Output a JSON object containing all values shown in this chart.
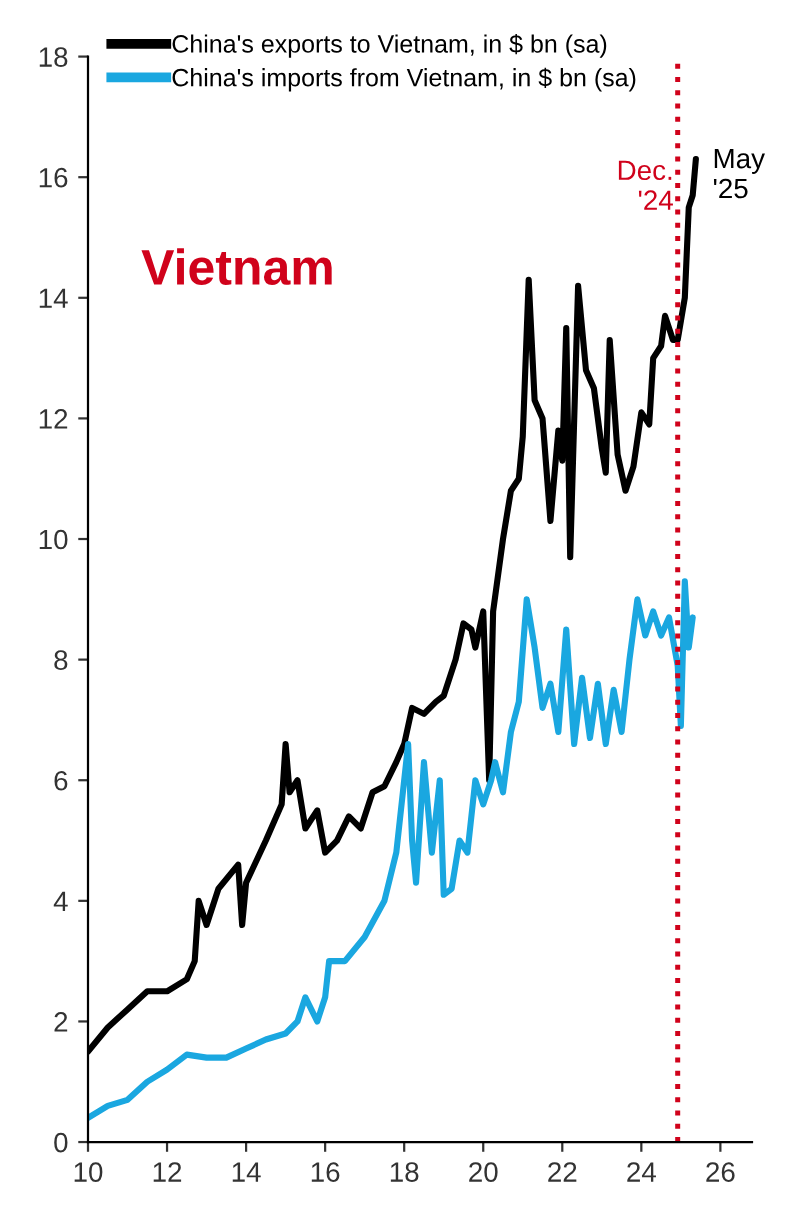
{
  "chart_data": {
    "type": "line",
    "series": [
      {
        "name": "China's exports to Vietnam, in $ bn (sa)",
        "color": "#000000",
        "x": [
          10,
          10.5,
          11,
          11.5,
          12,
          12.5,
          12.7,
          12.8,
          13,
          13.3,
          13.8,
          13.9,
          14,
          14.5,
          14.9,
          15,
          15.1,
          15.3,
          15.5,
          15.8,
          16,
          16.3,
          16.6,
          16.9,
          17.2,
          17.5,
          17.8,
          18,
          18.2,
          18.5,
          18.8,
          19,
          19.3,
          19.5,
          19.7,
          19.8,
          20,
          20.15,
          20.25,
          20.5,
          20.7,
          20.9,
          21,
          21.15,
          21.3,
          21.5,
          21.7,
          21.9,
          22,
          22.1,
          22.2,
          22.4,
          22.6,
          22.8,
          23,
          23.1,
          23.2,
          23.4,
          23.6,
          23.8,
          24,
          24.2,
          24.3,
          24.5,
          24.6,
          24.8,
          24.92,
          25.1,
          25.2,
          25.3,
          25.38
        ],
        "values": [
          1.5,
          1.9,
          2.2,
          2.5,
          2.5,
          2.7,
          3.0,
          4.0,
          3.6,
          4.2,
          4.6,
          3.6,
          4.3,
          5.0,
          5.6,
          6.6,
          5.8,
          6.0,
          5.2,
          5.5,
          4.8,
          5.0,
          5.4,
          5.2,
          5.8,
          5.9,
          6.3,
          6.6,
          7.2,
          7.1,
          7.3,
          7.4,
          8.0,
          8.6,
          8.5,
          8.2,
          8.8,
          6.0,
          8.8,
          10.0,
          10.8,
          11.0,
          11.7,
          14.3,
          12.3,
          12.0,
          10.3,
          11.8,
          11.3,
          13.5,
          9.7,
          14.2,
          12.8,
          12.5,
          11.5,
          11.1,
          13.3,
          11.4,
          10.8,
          11.2,
          12.1,
          11.9,
          13.0,
          13.2,
          13.7,
          13.3,
          13.3,
          14.0,
          15.5,
          15.7,
          16.3
        ]
      },
      {
        "name": "China's imports from Vietnam, in $ bn (sa)",
        "color": "#1aa7e0",
        "x": [
          10,
          10.5,
          11,
          11.5,
          12,
          12.5,
          13,
          13.5,
          14,
          14.5,
          15,
          15.3,
          15.5,
          15.8,
          16,
          16.1,
          16.5,
          17,
          17.5,
          17.8,
          18.1,
          18.2,
          18.3,
          18.5,
          18.7,
          18.9,
          19,
          19.2,
          19.4,
          19.6,
          19.8,
          20,
          20.2,
          20.3,
          20.5,
          20.7,
          20.9,
          21.1,
          21.3,
          21.5,
          21.7,
          21.9,
          22.1,
          22.3,
          22.5,
          22.7,
          22.9,
          23.1,
          23.3,
          23.5,
          23.7,
          23.9,
          24.1,
          24.3,
          24.5,
          24.7,
          24.92,
          25,
          25.1,
          25.2,
          25.3
        ],
        "values": [
          0.4,
          0.6,
          0.7,
          1.0,
          1.2,
          1.45,
          1.4,
          1.4,
          1.55,
          1.7,
          1.8,
          2.0,
          2.4,
          2.0,
          2.4,
          3.0,
          3.0,
          3.4,
          4.0,
          4.8,
          6.6,
          5.0,
          4.3,
          6.3,
          4.8,
          6.0,
          4.1,
          4.2,
          5.0,
          4.8,
          6.0,
          5.6,
          6.0,
          6.3,
          5.8,
          6.8,
          7.3,
          9.0,
          8.2,
          7.2,
          7.6,
          6.8,
          8.5,
          6.6,
          7.7,
          6.7,
          7.6,
          6.6,
          7.5,
          6.8,
          8.0,
          9.0,
          8.4,
          8.8,
          8.4,
          8.7,
          7.9,
          6.9,
          9.3,
          8.2,
          8.7
        ]
      }
    ],
    "xlim": [
      10,
      26.8
    ],
    "xticks": [
      10,
      12,
      14,
      16,
      18,
      20,
      22,
      24,
      26
    ],
    "ylim": [
      0,
      18
    ],
    "yticks": [
      0,
      2,
      4,
      6,
      8,
      10,
      12,
      14,
      16,
      18
    ],
    "ref_lines": [
      {
        "axis": "x",
        "value": 24.92,
        "label": "Dec.\n'24",
        "color": "#d0021b",
        "line_style": "dotted"
      }
    ],
    "annotations": [
      "Vietnam",
      {
        "text": "May\n'25",
        "x": 25.38,
        "y": 16.3
      }
    ],
    "legend": "top left",
    "grid": false,
    "marker": "none",
    "line_style": "solid"
  }
}
